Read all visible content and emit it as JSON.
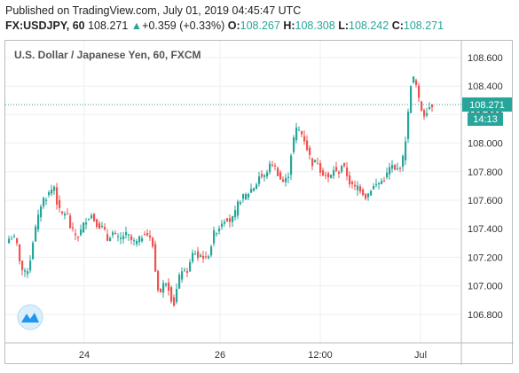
{
  "header": {
    "published": "Published on TradingView.com, July 01, 2019 04:45:47 UTC",
    "symbol": "FX:USDJPY, 60",
    "last": "108.271",
    "change_arrow": "▲",
    "change": "+0.359 (+0.33%)",
    "o_label": "O:",
    "o": "108.267",
    "h_label": "H:",
    "h": "108.308",
    "l_label": "L:",
    "l": "108.242",
    "c_label": "C:",
    "c": "108.271"
  },
  "colors": {
    "up": "#26a69a",
    "down": "#ef5350",
    "price_line": "#26a69a",
    "logo": "#2196f3"
  },
  "chart_data": {
    "type": "candlestick",
    "title": "U.S. Dollar / Japanese Yen, 60, FXCM",
    "y_ticks": [
      "108.600",
      "108.400",
      "108.200",
      "108.000",
      "107.800",
      "107.600",
      "107.400",
      "107.200",
      "107.000",
      "106.800"
    ],
    "ylim": [
      106.7,
      108.7
    ],
    "x_ticks": [
      "24",
      "26",
      "12:00",
      "Jul"
    ],
    "last_price_label": "108.271",
    "countdown_label": "14:13",
    "grid": true,
    "closes": [
      107.33,
      107.35,
      107.28,
      107.12,
      107.08,
      107.15,
      107.35,
      107.46,
      107.6,
      107.62,
      107.66,
      107.7,
      107.53,
      107.5,
      107.52,
      107.4,
      107.36,
      107.35,
      107.42,
      107.48,
      107.5,
      107.45,
      107.42,
      107.4,
      107.32,
      107.38,
      107.34,
      107.32,
      107.36,
      107.35,
      107.31,
      107.3,
      107.33,
      107.38,
      107.35,
      107.28,
      107.0,
      106.95,
      107.05,
      106.98,
      106.85,
      107.0,
      107.12,
      107.08,
      107.15,
      107.25,
      107.2,
      107.22,
      107.18,
      107.26,
      107.38,
      107.4,
      107.46,
      107.48,
      107.45,
      107.5,
      107.6,
      107.62,
      107.64,
      107.68,
      107.7,
      107.78,
      107.75,
      107.82,
      107.86,
      107.82,
      107.75,
      107.72,
      107.78,
      108.0,
      108.1,
      108.08,
      108.02,
      107.92,
      107.85,
      107.88,
      107.8,
      107.78,
      107.74,
      107.82,
      107.78,
      107.85,
      107.8,
      107.72,
      107.68,
      107.7,
      107.66,
      107.62,
      107.68,
      107.7,
      107.72,
      107.74,
      107.78,
      107.85,
      107.8,
      107.83,
      107.9,
      108.15,
      108.48,
      108.42,
      108.26,
      108.2,
      108.25,
      108.27
    ]
  }
}
